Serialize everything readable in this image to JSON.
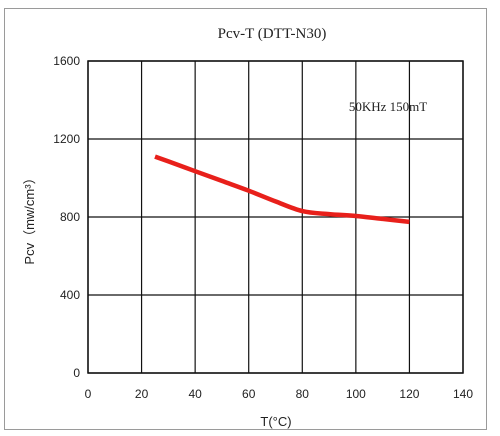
{
  "chart_data": {
    "type": "line",
    "title": "Pcv-T (DTT-N30)",
    "xlabel": "T(°C)",
    "ylabel": "Pcv（mw/cm³）",
    "annotation": "50KHz 150mT",
    "xlim": [
      0,
      140
    ],
    "ylim": [
      0,
      1600
    ],
    "xticks": [
      0,
      20,
      40,
      60,
      80,
      100,
      120,
      140
    ],
    "yticks": [
      0,
      400,
      800,
      1200,
      1600
    ],
    "grid": true,
    "series": [
      {
        "color": "#e8201b",
        "x": [
          25,
          30,
          40,
          50,
          60,
          70,
          80,
          90,
          100,
          110,
          120
        ],
        "y": [
          1110,
          1085,
          1035,
          985,
          935,
          880,
          830,
          815,
          805,
          790,
          775
        ]
      }
    ]
  }
}
